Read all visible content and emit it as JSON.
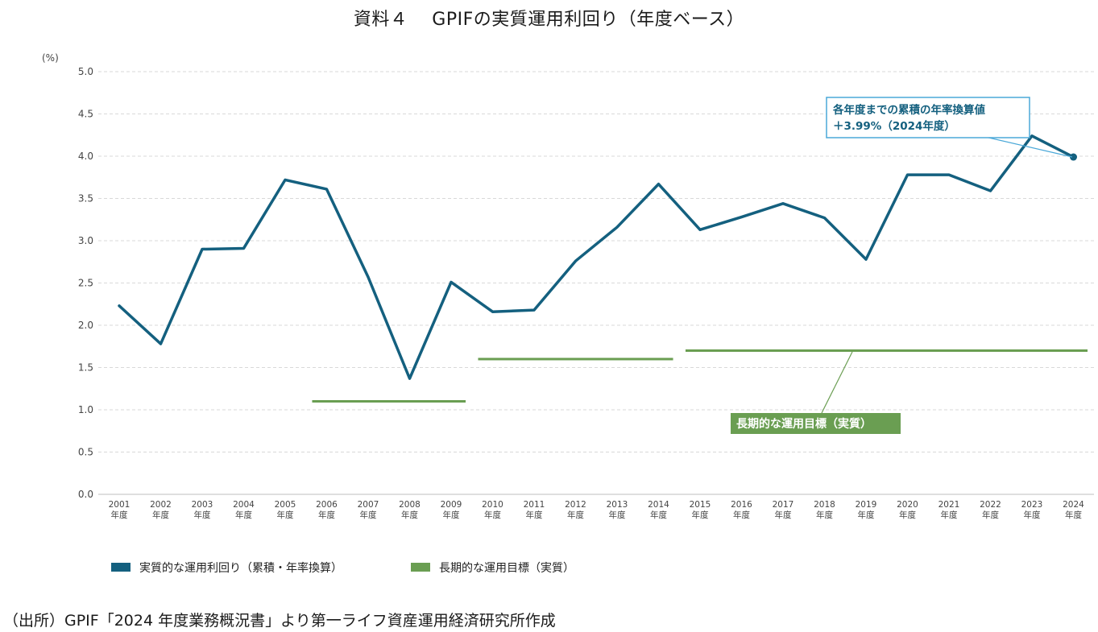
{
  "title": "資料４　 GPIFの実質運用利回り（年度ベース）",
  "source": "（出所）GPIF「2024 年度業務概況書」より第一ライフ資産運用経済研究所作成",
  "colors": {
    "return_line": "#14607f",
    "target_line": "#6a9e52",
    "callout_border": "#4aa8d8",
    "callout_text": "#14607f",
    "label_bg": "#6a9e52",
    "grid": "#d9d9d9"
  },
  "chart_data": {
    "type": "line",
    "title": "資料４　 GPIFの実質運用利回り（年度ベース）",
    "ylabel": "(%)",
    "xlabel": "",
    "ylim": [
      0,
      5.0
    ],
    "yticks": [
      "0.0",
      "0.5",
      "1.0",
      "1.5",
      "2.0",
      "2.5",
      "3.0",
      "3.5",
      "4.0",
      "4.5",
      "5.0"
    ],
    "grid": true,
    "legend_position": "bottom",
    "categories": [
      "2001\n年度",
      "2002\n年度",
      "2003\n年度",
      "2004\n年度",
      "2005\n年度",
      "2006\n年度",
      "2007\n年度",
      "2008\n年度",
      "2009\n年度",
      "2010\n年度",
      "2011\n年度",
      "2012\n年度",
      "2013\n年度",
      "2014\n年度",
      "2015\n年度",
      "2016\n年度",
      "2017\n年度",
      "2018\n年度",
      "2019\n年度",
      "2020\n年度",
      "2021\n年度",
      "2022\n年度",
      "2023\n年度",
      "2024\n年度"
    ],
    "series": [
      {
        "name": "実質的な運用利回り（累積・年率換算）",
        "values": [
          2.23,
          1.78,
          2.9,
          2.91,
          3.72,
          3.61,
          2.57,
          1.37,
          2.51,
          2.16,
          2.18,
          2.76,
          3.16,
          3.67,
          3.13,
          3.28,
          3.44,
          3.27,
          2.78,
          3.78,
          3.78,
          3.59,
          4.24,
          3.99
        ]
      }
    ],
    "target_segments": {
      "name": "長期的な運用目標（実質）",
      "segments": [
        {
          "from": "2006",
          "to": "2009",
          "value": 1.1
        },
        {
          "from": "2010",
          "to": "2014",
          "value": 1.6
        },
        {
          "from": "2015",
          "to": "2024",
          "value": 1.7
        }
      ]
    },
    "annotations": {
      "cumulative_line1": "各年度までの累積の年率換算値",
      "cumulative_line2": "＋3.99%（2024年度）",
      "target_label": "長期的な運用目標（実質）"
    }
  }
}
